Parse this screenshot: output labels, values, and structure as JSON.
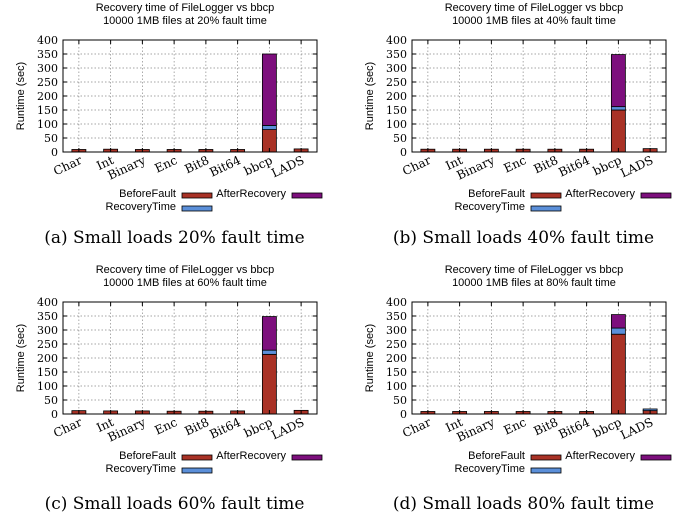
{
  "colors": {
    "before": "#a93226",
    "recovery": "#5b8fd9",
    "after": "#7d0f7d",
    "grid": "#888888",
    "axis": "#000000"
  },
  "chart_data": [
    {
      "type": "bar",
      "title": "Recovery time of FileLogger vs bbcp",
      "subtitle": "10000 1MB files at 20% fault time",
      "ylabel": "Runtime (sec)",
      "xlabel": "",
      "ylim": [
        0,
        400
      ],
      "yticks": [
        0,
        50,
        100,
        150,
        200,
        250,
        300,
        350,
        400
      ],
      "grid": true,
      "stacked": true,
      "categories": [
        "Char",
        "Int",
        "Binary",
        "Enc",
        "Bit8",
        "Bit64",
        "bbcp",
        "LADS"
      ],
      "series": [
        {
          "name": "BeforeFault",
          "color_key": "before",
          "values": [
            9,
            10,
            9,
            9,
            9,
            9,
            80,
            11
          ]
        },
        {
          "name": "RecoveryTime",
          "color_key": "recovery",
          "values": [
            0,
            0,
            0,
            0,
            0,
            0,
            15,
            0
          ]
        },
        {
          "name": "AfterRecovery",
          "color_key": "after",
          "values": [
            0,
            0,
            0,
            0,
            0,
            0,
            255,
            0
          ]
        }
      ],
      "caption": "(a) Small loads 20% fault time"
    },
    {
      "type": "bar",
      "title": "Recovery time of FileLogger vs bbcp",
      "subtitle": "10000 1MB files at 40% fault time",
      "ylabel": "Runtime (sec)",
      "xlabel": "",
      "ylim": [
        0,
        400
      ],
      "yticks": [
        0,
        50,
        100,
        150,
        200,
        250,
        300,
        350,
        400
      ],
      "grid": true,
      "stacked": true,
      "categories": [
        "Char",
        "Int",
        "Binary",
        "Enc",
        "Bit8",
        "Bit64",
        "bbcp",
        "LADS"
      ],
      "series": [
        {
          "name": "BeforeFault",
          "color_key": "before",
          "values": [
            10,
            10,
            10,
            10,
            10,
            10,
            150,
            12
          ]
        },
        {
          "name": "RecoveryTime",
          "color_key": "recovery",
          "values": [
            0,
            0,
            0,
            0,
            0,
            0,
            12,
            0
          ]
        },
        {
          "name": "AfterRecovery",
          "color_key": "after",
          "values": [
            0,
            0,
            0,
            0,
            0,
            0,
            186,
            0
          ]
        }
      ],
      "caption": "(b) Small loads 40% fault time"
    },
    {
      "type": "bar",
      "title": "Recovery time of FileLogger vs bbcp",
      "subtitle": "10000 1MB files at 60% fault time",
      "ylabel": "Runtime (sec)",
      "xlabel": "",
      "ylim": [
        0,
        400
      ],
      "yticks": [
        0,
        50,
        100,
        150,
        200,
        250,
        300,
        350,
        400
      ],
      "grid": true,
      "stacked": true,
      "categories": [
        "Char",
        "Int",
        "Binary",
        "Enc",
        "Bit8",
        "Bit64",
        "bbcp",
        "LADS"
      ],
      "series": [
        {
          "name": "BeforeFault",
          "color_key": "before",
          "values": [
            12,
            11,
            11,
            10,
            10,
            11,
            213,
            13
          ]
        },
        {
          "name": "RecoveryTime",
          "color_key": "recovery",
          "values": [
            0,
            0,
            0,
            0,
            0,
            0,
            15,
            0
          ]
        },
        {
          "name": "AfterRecovery",
          "color_key": "after",
          "values": [
            0,
            0,
            0,
            0,
            0,
            0,
            120,
            0
          ]
        }
      ],
      "caption": "(c) Small loads 60% fault time"
    },
    {
      "type": "bar",
      "title": "Recovery time of FileLogger vs bbcp",
      "subtitle": "10000 1MB files at 80% fault time",
      "ylabel": "Runtime (sec)",
      "xlabel": "",
      "ylim": [
        0,
        400
      ],
      "yticks": [
        0,
        50,
        100,
        150,
        200,
        250,
        300,
        350,
        400
      ],
      "grid": true,
      "stacked": true,
      "categories": [
        "Char",
        "Int",
        "Binary",
        "Enc",
        "Bit8",
        "Bit64",
        "bbcp",
        "LADS"
      ],
      "series": [
        {
          "name": "BeforeFault",
          "color_key": "before",
          "values": [
            9,
            9,
            9,
            9,
            9,
            9,
            285,
            12
          ]
        },
        {
          "name": "RecoveryTime",
          "color_key": "recovery",
          "values": [
            0,
            0,
            0,
            0,
            0,
            0,
            22,
            6
          ]
        },
        {
          "name": "AfterRecovery",
          "color_key": "after",
          "values": [
            0,
            0,
            0,
            0,
            0,
            0,
            48,
            0
          ]
        }
      ],
      "caption": "(d) Small loads 80% fault time"
    }
  ]
}
